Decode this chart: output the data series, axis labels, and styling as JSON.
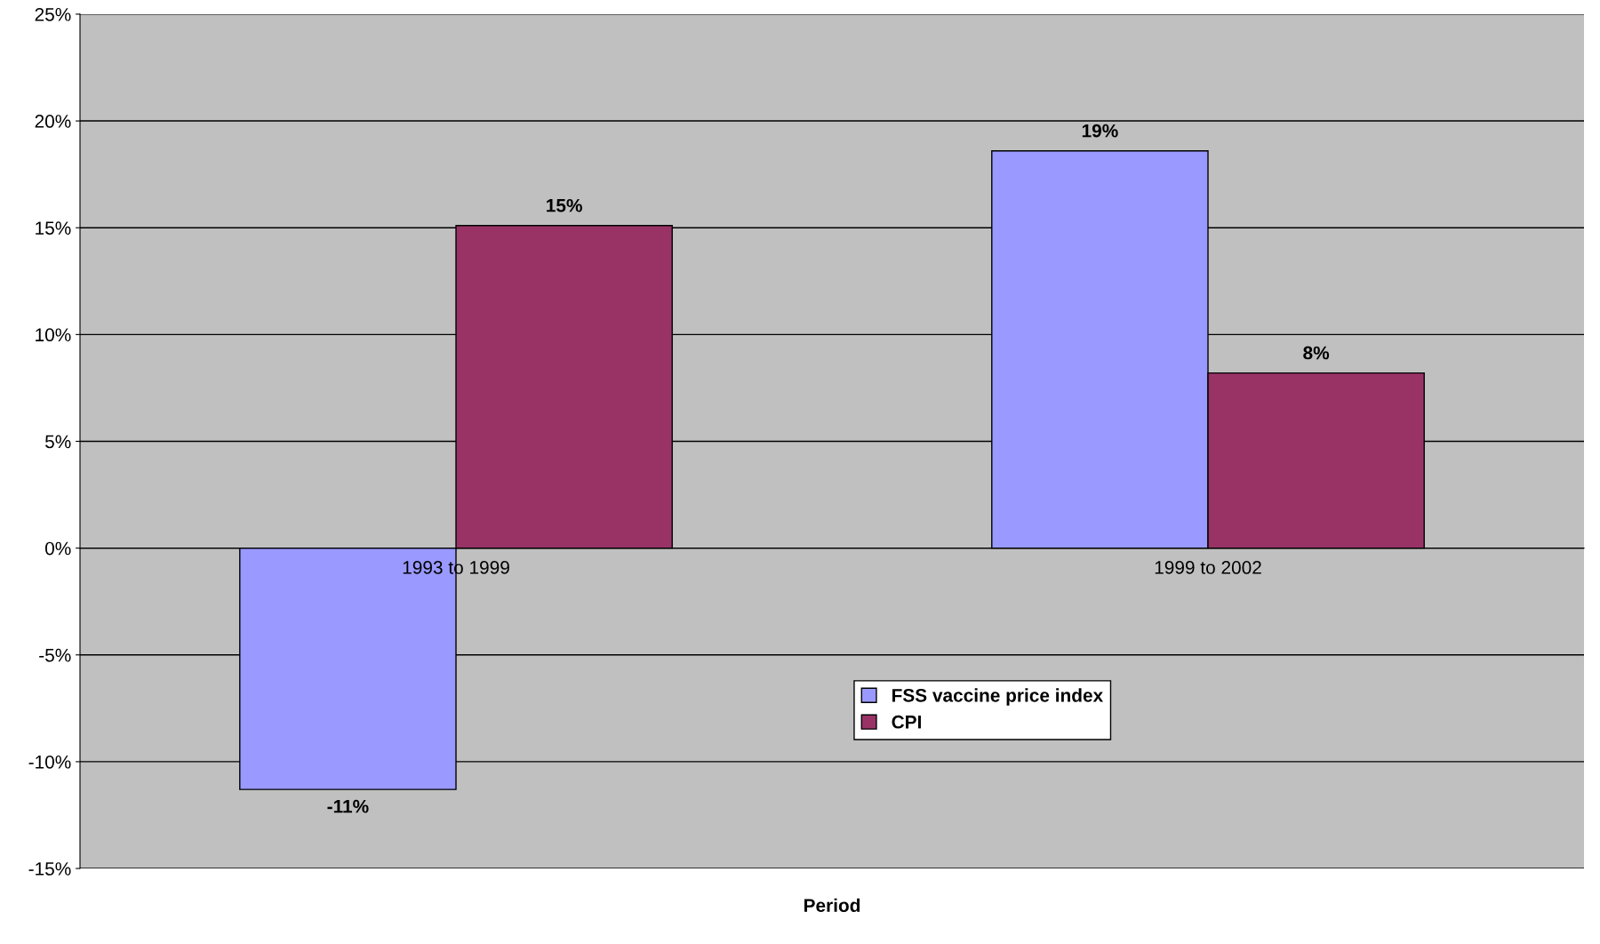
{
  "chart_data": {
    "type": "bar",
    "xlabel": "Period",
    "categories": [
      "1993 to 1999",
      "1999 to 2002"
    ],
    "series": [
      {
        "name": "FSS vaccine price index",
        "color": "#9999ff",
        "values": [
          -11.3,
          18.6
        ],
        "value_labels": [
          "-11%",
          "19%"
        ]
      },
      {
        "name": "CPI",
        "color": "#993366",
        "values": [
          15.1,
          8.2
        ],
        "value_labels": [
          "15%",
          "8%"
        ]
      }
    ],
    "ylim": [
      -15,
      25
    ],
    "yticks": [
      {
        "value": -15,
        "label": "-15%"
      },
      {
        "value": -10,
        "label": "-10%"
      },
      {
        "value": -5,
        "label": "-5%"
      },
      {
        "value": 0,
        "label": "0%"
      },
      {
        "value": 5,
        "label": "5%"
      },
      {
        "value": 10,
        "label": "10%"
      },
      {
        "value": 15,
        "label": "15%"
      },
      {
        "value": 20,
        "label": "20%"
      },
      {
        "value": 25,
        "label": "25%"
      }
    ],
    "grid": "y",
    "legend": "bottom"
  }
}
